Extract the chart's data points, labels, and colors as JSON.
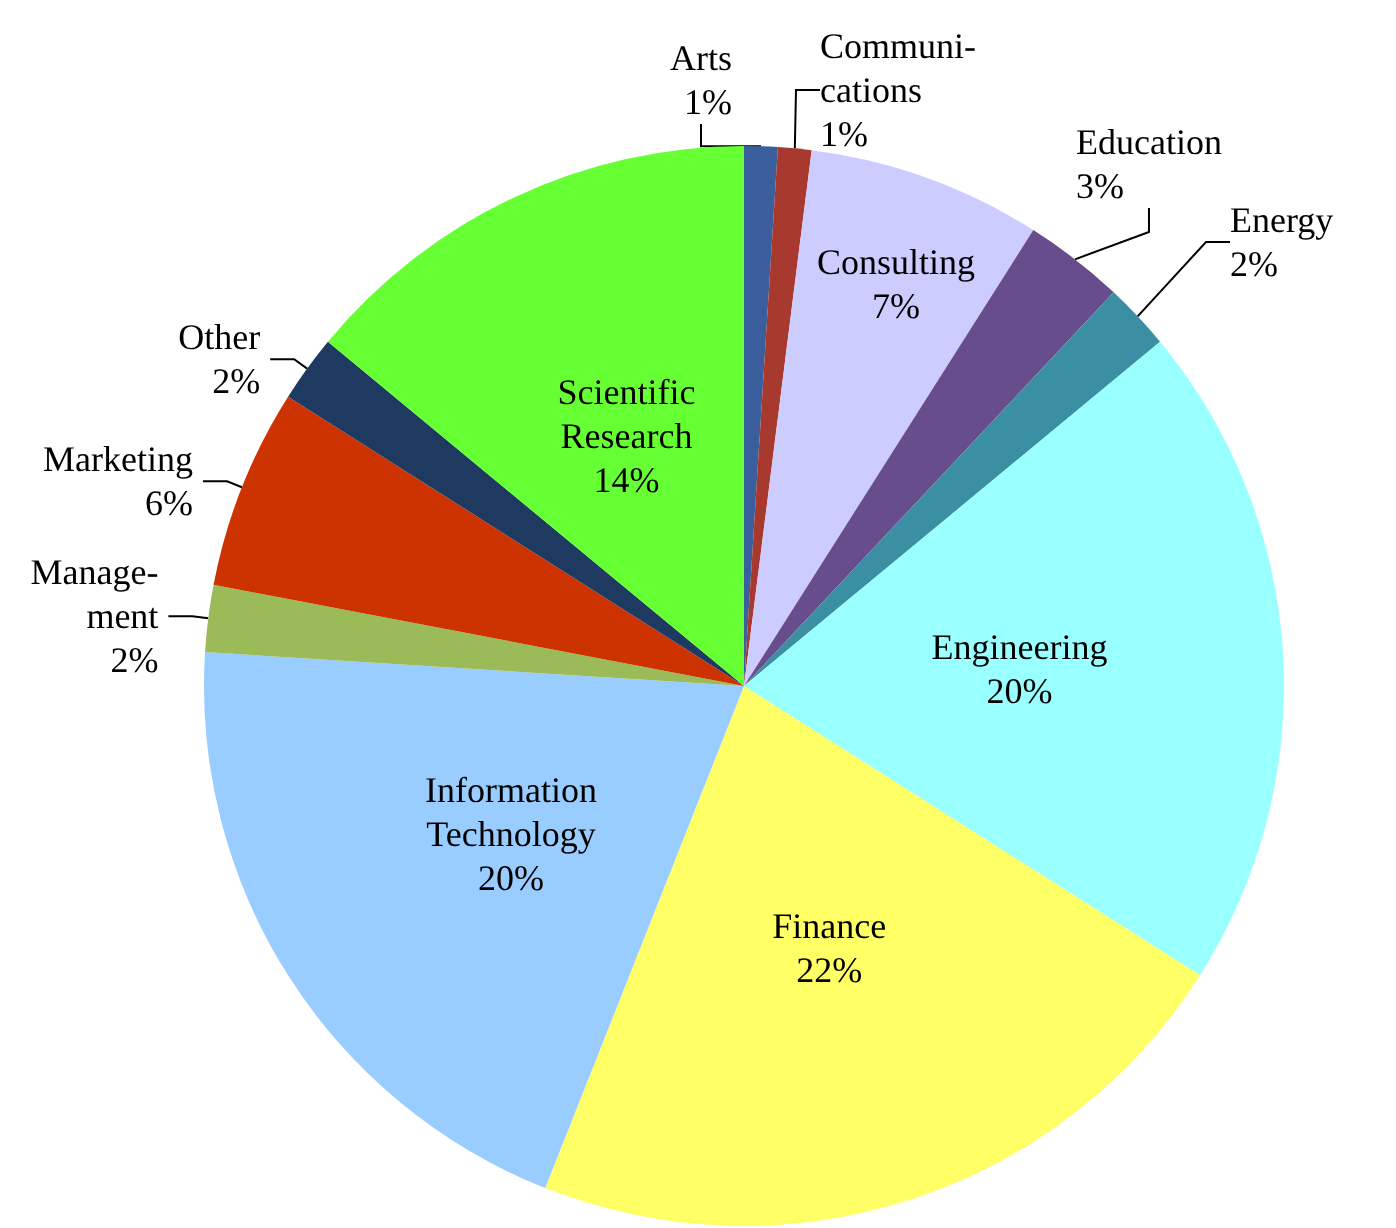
{
  "chart_data": {
    "type": "pie",
    "categories": [
      "Arts",
      "Communi-\ncations",
      "Consulting",
      "Education",
      "Energy",
      "Engineering",
      "Finance",
      "Information\nTechnology",
      "Manage-\nment",
      "Marketing",
      "Other",
      "Scientific\nResearch"
    ],
    "values": [
      1,
      1,
      7,
      3,
      2,
      20,
      22,
      20,
      2,
      6,
      2,
      14
    ],
    "value_labels": [
      "1%",
      "1%",
      "7%",
      "3%",
      "2%",
      "20%",
      "22%",
      "20%",
      "2%",
      "6%",
      "2%",
      "14%"
    ],
    "colors": [
      "#3a5f9c",
      "#a8392f",
      "#ccccff",
      "#684d8c",
      "#3a8fa3",
      "#99ffff",
      "#ffff66",
      "#99ccff",
      "#9bbb59",
      "#cc3300",
      "#1f3a60",
      "#66ff33"
    ]
  }
}
